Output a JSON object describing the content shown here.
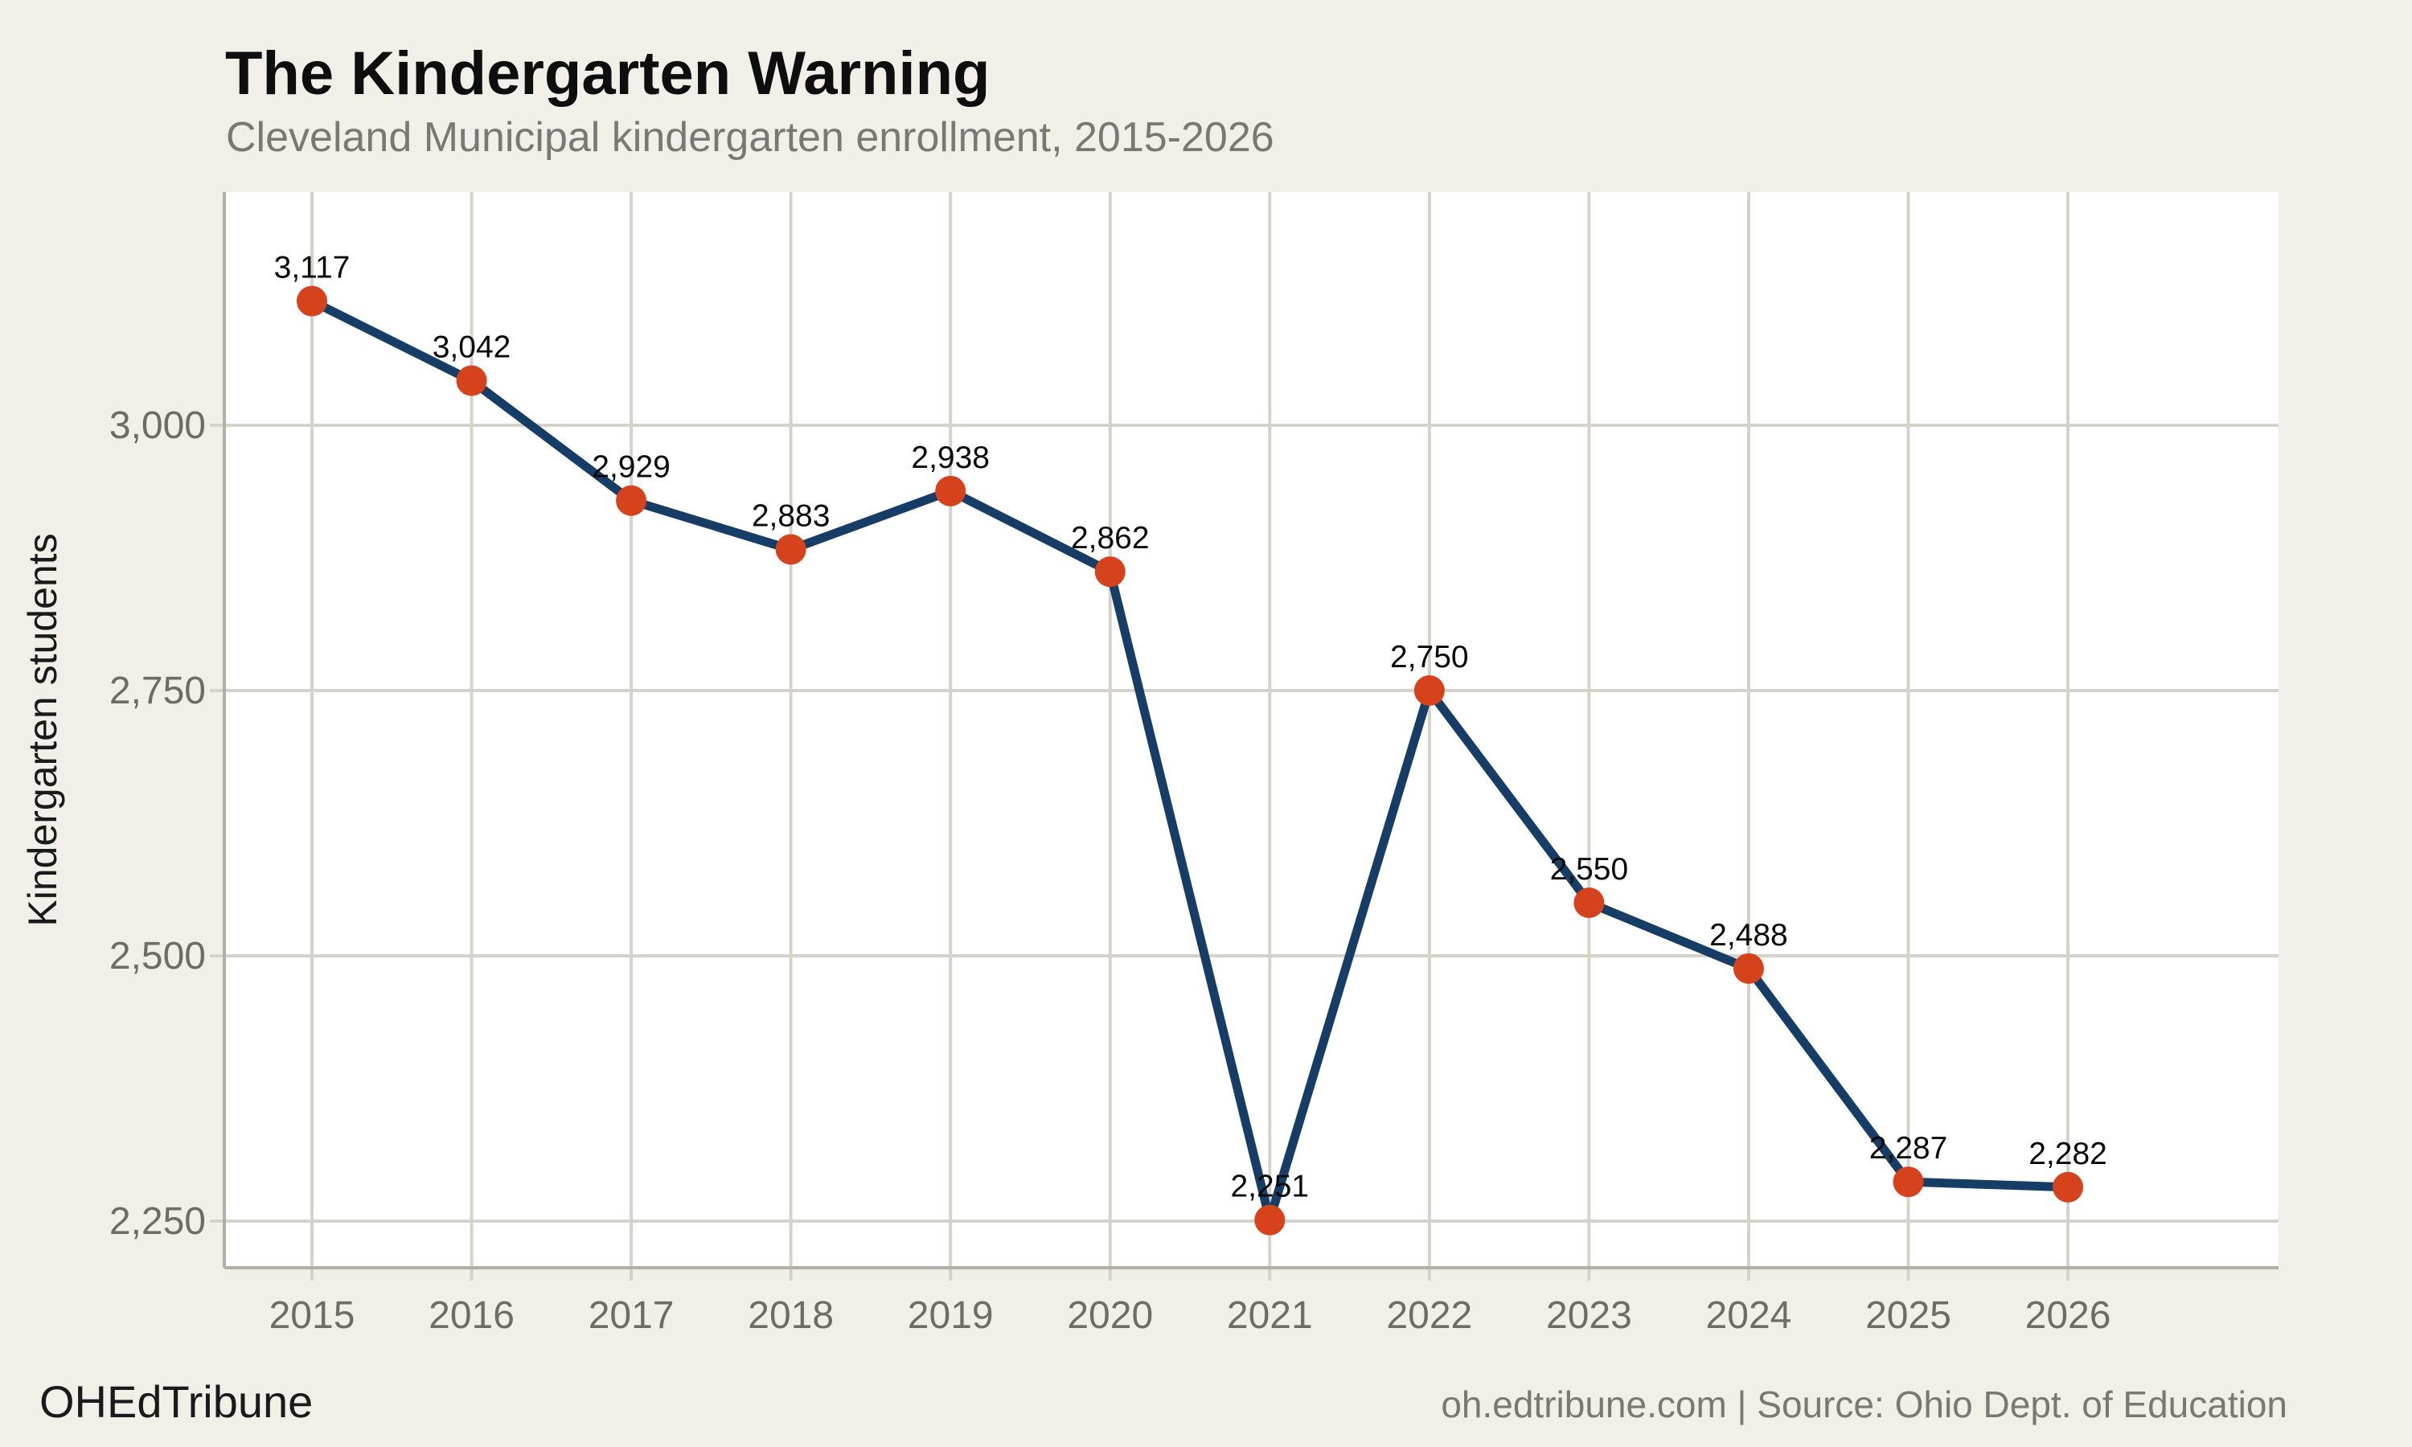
{
  "header": {
    "title": "The Kindergarten Warning",
    "subtitle": "Cleveland Municipal kindergarten enrollment, 2015-2026"
  },
  "footer": {
    "brand": "OHEdTribune",
    "credit": "oh.edtribune.com | Source: Ohio Dept. of Education"
  },
  "chart_data": {
    "type": "line",
    "title": "The Kindergarten Warning",
    "subtitle": "Cleveland Municipal kindergarten enrollment, 2015-2026",
    "xlabel": "",
    "ylabel": "Kindergarten students",
    "categories": [
      2015,
      2016,
      2017,
      2018,
      2019,
      2020,
      2021,
      2022,
      2023,
      2024,
      2025,
      2026
    ],
    "values": [
      3117,
      3042,
      2929,
      2883,
      2938,
      2862,
      2251,
      2750,
      2550,
      2488,
      2287,
      2282
    ],
    "data_labels": [
      "3,117",
      "3,042",
      "2,929",
      "2,883",
      "2,938",
      "2,862",
      "2,251",
      "2,750",
      "2,550",
      "2,488",
      "2,287",
      "2,282"
    ],
    "x_tick_labels": [
      "2015",
      "2016",
      "2017",
      "2018",
      "2019",
      "2020",
      "2021",
      "2022",
      "2023",
      "2024",
      "2025",
      "2026"
    ],
    "y_ticks": [
      {
        "value": 3000,
        "label": "3,000"
      },
      {
        "value": 2750,
        "label": "2,750"
      },
      {
        "value": 2500,
        "label": "2,500"
      },
      {
        "value": 2250,
        "label": "2,250"
      }
    ],
    "ylim": [
      2205,
      3218
    ],
    "grid": true,
    "legend_position": "none",
    "colors": {
      "line": "#163d66",
      "marker": "#d5421c",
      "plot_background": "#ffffff",
      "page_background": "#f2efe9",
      "gridline": "#d5d2c9",
      "axis_line": "#b3afa6",
      "tick_label": "#6f6b66",
      "data_label": "#0a0a0a",
      "axis_title": "#1a1a1a"
    }
  }
}
